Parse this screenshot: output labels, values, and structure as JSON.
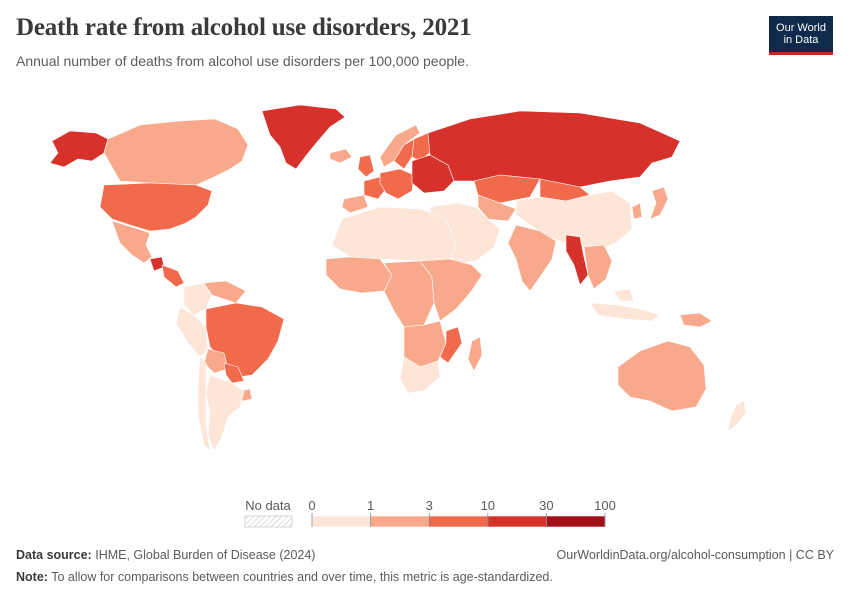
{
  "title": "Death rate from alcohol use disorders, 2021",
  "subtitle": "Annual number of deaths from alcohol use disorders per 100,000 people.",
  "logo": {
    "line1": "Our World",
    "line2": "in Data",
    "bg": "#0f2a4a",
    "accent": "#ce261e"
  },
  "legend": {
    "no_data_label": "No data",
    "ticks": [
      "0",
      "1",
      "3",
      "10",
      "30",
      "100"
    ],
    "colors": [
      "#fde5d8",
      "#f9a98b",
      "#f06a4b",
      "#d6312a",
      "#a30f16"
    ]
  },
  "footer": {
    "source_label": "Data source:",
    "source_text": "IHME, Global Burden of Disease (2024)",
    "url": "OurWorldinData.org/alcohol-consumption | CC BY",
    "note_label": "Note:",
    "note_text": "To allow for comparisons between countries and over time, this metric is age-standardized."
  },
  "regions": [
    {
      "name": "greenland",
      "bin": 3
    },
    {
      "name": "alaska",
      "bin": 3
    },
    {
      "name": "canada",
      "bin": 1
    },
    {
      "name": "united-states",
      "bin": 2
    },
    {
      "name": "mexico",
      "bin": 1
    },
    {
      "name": "guatemala",
      "bin": 3
    },
    {
      "name": "central-america",
      "bin": 2
    },
    {
      "name": "colombia",
      "bin": 0
    },
    {
      "name": "venezuela",
      "bin": 1
    },
    {
      "name": "peru",
      "bin": 0
    },
    {
      "name": "brazil",
      "bin": 2
    },
    {
      "name": "bolivia",
      "bin": 1
    },
    {
      "name": "paraguay",
      "bin": 2
    },
    {
      "name": "argentina",
      "bin": 0
    },
    {
      "name": "chile",
      "bin": 0
    },
    {
      "name": "uruguay",
      "bin": 1
    },
    {
      "name": "iceland",
      "bin": 1
    },
    {
      "name": "norway",
      "bin": 1
    },
    {
      "name": "sweden",
      "bin": 2
    },
    {
      "name": "finland",
      "bin": 2
    },
    {
      "name": "united-kingdom",
      "bin": 2
    },
    {
      "name": "france",
      "bin": 2
    },
    {
      "name": "spain",
      "bin": 1
    },
    {
      "name": "central-europe",
      "bin": 2
    },
    {
      "name": "eastern-europe",
      "bin": 3
    },
    {
      "name": "russia",
      "bin": 3
    },
    {
      "name": "kazakhstan",
      "bin": 2
    },
    {
      "name": "central-asia",
      "bin": 1
    },
    {
      "name": "mongolia",
      "bin": 2
    },
    {
      "name": "china",
      "bin": 0
    },
    {
      "name": "korea-japan",
      "bin": 1
    },
    {
      "name": "middle-east",
      "bin": 0
    },
    {
      "name": "north-africa",
      "bin": 0
    },
    {
      "name": "west-africa",
      "bin": 1
    },
    {
      "name": "central-africa",
      "bin": 1
    },
    {
      "name": "east-africa",
      "bin": 1
    },
    {
      "name": "southern-africa",
      "bin": 1
    },
    {
      "name": "mozambique",
      "bin": 2
    },
    {
      "name": "south-africa",
      "bin": 0
    },
    {
      "name": "madagascar",
      "bin": 1
    },
    {
      "name": "india",
      "bin": 1
    },
    {
      "name": "myanmar",
      "bin": 3
    },
    {
      "name": "southeast-asia",
      "bin": 1
    },
    {
      "name": "indonesia",
      "bin": 0
    },
    {
      "name": "papua-new-guinea",
      "bin": 1
    },
    {
      "name": "australia",
      "bin": 1
    },
    {
      "name": "new-zealand",
      "bin": 0
    }
  ]
}
